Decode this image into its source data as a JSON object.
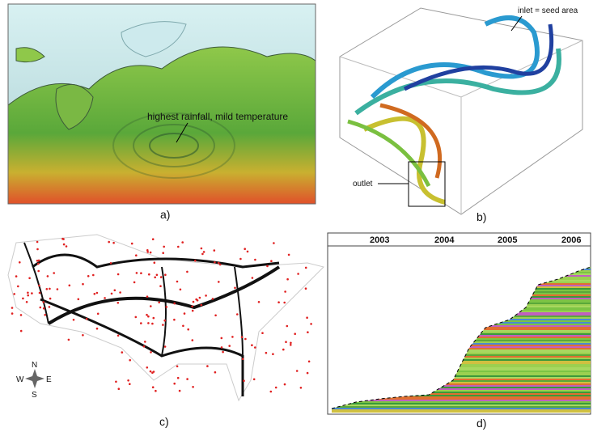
{
  "panels": [
    {
      "label": "a)",
      "annotation": "highest rainfall, mild temperature"
    },
    {
      "label": "b)",
      "annotations": [
        "inlet = seed area",
        "outlet"
      ]
    },
    {
      "label": "c)",
      "compass": [
        "N",
        "E",
        "S",
        "W"
      ]
    },
    {
      "label": "d)",
      "years": [
        "2003",
        "2004",
        "2005",
        "2006"
      ]
    }
  ]
}
